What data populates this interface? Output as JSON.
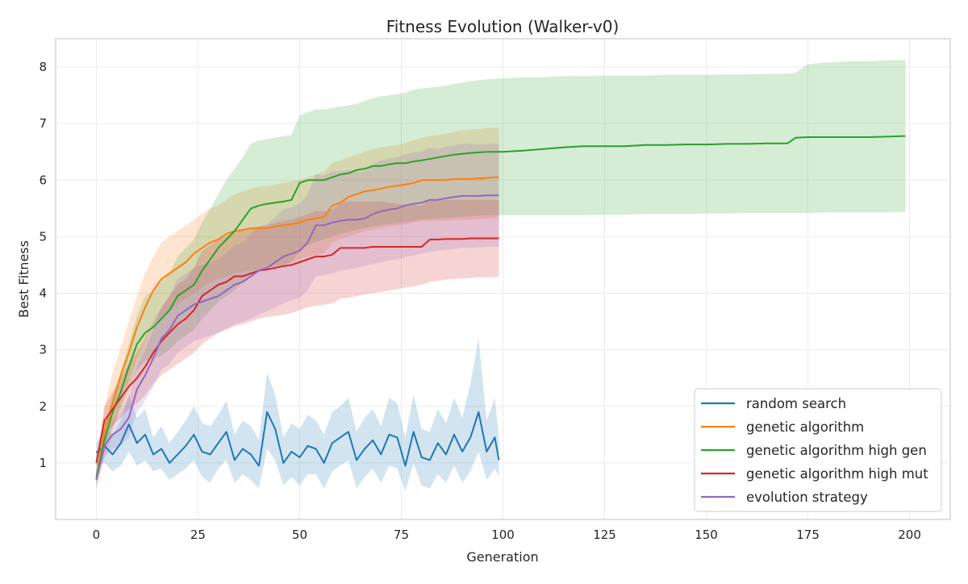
{
  "chart_data": {
    "type": "line",
    "title": "Fitness Evolution (Walker-v0)",
    "xlabel": "Generation",
    "ylabel": "Best Fitness",
    "xlim": [
      -10,
      210
    ],
    "ylim": [
      0.0,
      8.5
    ],
    "xticks": [
      0,
      25,
      50,
      75,
      100,
      125,
      150,
      175,
      200
    ],
    "yticks": [
      1,
      2,
      3,
      4,
      5,
      6,
      7,
      8
    ],
    "grid": true,
    "legend_position": "bottom-right",
    "series": [
      {
        "name": "random search",
        "color": "#1f77b4",
        "x": [
          0,
          2,
          4,
          6,
          8,
          10,
          12,
          14,
          16,
          18,
          20,
          22,
          24,
          26,
          28,
          30,
          32,
          34,
          36,
          38,
          40,
          42,
          44,
          46,
          48,
          50,
          52,
          54,
          56,
          58,
          60,
          62,
          64,
          66,
          68,
          70,
          72,
          74,
          76,
          78,
          80,
          82,
          84,
          86,
          88,
          90,
          92,
          94,
          96,
          98,
          99
        ],
        "y": [
          1.18,
          1.3,
          1.15,
          1.35,
          1.68,
          1.35,
          1.5,
          1.15,
          1.25,
          1.0,
          1.15,
          1.3,
          1.5,
          1.2,
          1.15,
          1.35,
          1.55,
          1.05,
          1.25,
          1.15,
          0.95,
          1.9,
          1.6,
          1.0,
          1.2,
          1.1,
          1.3,
          1.25,
          1.0,
          1.35,
          1.45,
          1.55,
          1.05,
          1.25,
          1.4,
          1.15,
          1.5,
          1.45,
          0.95,
          1.55,
          1.1,
          1.05,
          1.35,
          1.15,
          1.5,
          1.2,
          1.45,
          1.9,
          1.2,
          1.45,
          1.05
        ],
        "lower": [
          0.95,
          1.0,
          0.85,
          0.95,
          1.2,
          0.95,
          1.05,
          0.85,
          0.9,
          0.7,
          0.8,
          0.9,
          1.05,
          0.75,
          0.65,
          0.9,
          1.05,
          0.65,
          0.8,
          0.7,
          0.55,
          1.25,
          1.05,
          0.6,
          0.75,
          0.6,
          0.8,
          0.8,
          0.55,
          0.85,
          0.95,
          1.05,
          0.55,
          0.75,
          0.9,
          0.65,
          0.95,
          0.9,
          0.5,
          1.0,
          0.6,
          0.55,
          0.8,
          0.65,
          0.95,
          0.65,
          0.85,
          1.2,
          0.7,
          0.9,
          0.75
        ],
        "upper": [
          1.35,
          1.6,
          1.5,
          1.75,
          2.2,
          1.8,
          1.95,
          1.45,
          1.65,
          1.35,
          1.55,
          1.75,
          2.0,
          1.7,
          1.65,
          1.85,
          2.1,
          1.5,
          1.75,
          1.65,
          1.4,
          2.6,
          2.2,
          1.45,
          1.7,
          1.6,
          1.85,
          1.75,
          1.5,
          1.9,
          2.0,
          2.15,
          1.55,
          1.8,
          1.95,
          1.65,
          2.15,
          2.05,
          1.45,
          2.2,
          1.6,
          1.55,
          1.95,
          1.7,
          2.15,
          1.8,
          2.4,
          3.2,
          1.75,
          2.15,
          1.45
        ]
      },
      {
        "name": "genetic algorithm",
        "color": "#ff7f0e",
        "x": [
          0,
          2,
          4,
          6,
          8,
          10,
          12,
          14,
          16,
          18,
          20,
          22,
          24,
          26,
          28,
          30,
          32,
          34,
          36,
          38,
          40,
          42,
          44,
          46,
          48,
          50,
          52,
          54,
          56,
          58,
          60,
          62,
          64,
          66,
          68,
          70,
          72,
          74,
          76,
          78,
          80,
          82,
          84,
          86,
          88,
          90,
          92,
          94,
          96,
          98,
          99
        ],
        "y": [
          0.7,
          1.55,
          2.05,
          2.55,
          2.95,
          3.4,
          3.75,
          4.05,
          4.25,
          4.35,
          4.45,
          4.55,
          4.7,
          4.8,
          4.9,
          4.95,
          5.05,
          5.1,
          5.12,
          5.15,
          5.15,
          5.15,
          5.18,
          5.2,
          5.22,
          5.25,
          5.3,
          5.32,
          5.35,
          5.55,
          5.6,
          5.7,
          5.75,
          5.8,
          5.82,
          5.85,
          5.88,
          5.9,
          5.92,
          5.95,
          6.0,
          6.0,
          6.0,
          6.0,
          6.02,
          6.02,
          6.02,
          6.03,
          6.04,
          6.05,
          6.05
        ],
        "lower": [
          0.55,
          1.1,
          1.55,
          2.05,
          2.45,
          2.85,
          3.15,
          3.45,
          3.6,
          3.7,
          3.8,
          3.9,
          4.0,
          4.1,
          4.2,
          4.25,
          4.3,
          4.35,
          4.38,
          4.4,
          4.42,
          4.45,
          4.48,
          4.5,
          4.55,
          4.6,
          4.65,
          4.68,
          4.7,
          4.9,
          4.95,
          5.0,
          5.05,
          5.1,
          5.12,
          5.15,
          5.18,
          5.2,
          5.22,
          5.25,
          5.28,
          5.28,
          5.28,
          5.28,
          5.3,
          5.3,
          5.3,
          5.31,
          5.32,
          5.33,
          5.33
        ],
        "upper": [
          0.85,
          2.0,
          2.6,
          3.05,
          3.5,
          3.95,
          4.35,
          4.65,
          4.9,
          5.0,
          5.1,
          5.2,
          5.3,
          5.4,
          5.5,
          5.55,
          5.65,
          5.75,
          5.8,
          5.85,
          5.88,
          5.9,
          5.92,
          5.95,
          5.98,
          6.0,
          6.05,
          6.1,
          6.15,
          6.3,
          6.35,
          6.4,
          6.45,
          6.5,
          6.55,
          6.58,
          6.6,
          6.62,
          6.65,
          6.7,
          6.75,
          6.78,
          6.8,
          6.82,
          6.85,
          6.88,
          6.9,
          6.9,
          6.92,
          6.92,
          6.92
        ]
      },
      {
        "name": "genetic algorithm high gen",
        "color": "#2ca02c",
        "x": [
          0,
          2,
          4,
          6,
          8,
          10,
          12,
          14,
          16,
          18,
          20,
          22,
          24,
          26,
          28,
          30,
          32,
          34,
          36,
          38,
          40,
          42,
          44,
          46,
          48,
          50,
          52,
          54,
          56,
          58,
          60,
          62,
          64,
          66,
          68,
          70,
          72,
          74,
          76,
          78,
          80,
          84,
          88,
          92,
          96,
          100,
          105,
          110,
          115,
          120,
          125,
          130,
          135,
          140,
          145,
          150,
          155,
          160,
          165,
          170,
          172,
          175,
          180,
          185,
          190,
          195,
          199
        ],
        "y": [
          0.75,
          1.4,
          1.9,
          2.25,
          2.7,
          3.1,
          3.3,
          3.4,
          3.55,
          3.7,
          3.95,
          4.05,
          4.15,
          4.4,
          4.6,
          4.8,
          4.95,
          5.1,
          5.3,
          5.5,
          5.55,
          5.58,
          5.6,
          5.62,
          5.65,
          5.95,
          6.0,
          6.0,
          6.0,
          6.05,
          6.1,
          6.12,
          6.18,
          6.2,
          6.25,
          6.25,
          6.28,
          6.3,
          6.3,
          6.33,
          6.35,
          6.4,
          6.45,
          6.48,
          6.5,
          6.5,
          6.52,
          6.55,
          6.58,
          6.6,
          6.6,
          6.6,
          6.62,
          6.62,
          6.63,
          6.63,
          6.64,
          6.64,
          6.65,
          6.65,
          6.75,
          6.76,
          6.76,
          6.76,
          6.76,
          6.77,
          6.78
        ],
        "lower": [
          0.65,
          1.2,
          1.65,
          1.95,
          2.3,
          2.65,
          2.8,
          2.85,
          2.9,
          3.0,
          3.15,
          3.25,
          3.35,
          3.55,
          3.7,
          3.85,
          3.95,
          4.05,
          4.2,
          4.35,
          4.4,
          4.45,
          4.48,
          4.5,
          4.55,
          4.75,
          4.85,
          4.9,
          4.95,
          5.0,
          5.05,
          5.08,
          5.12,
          5.15,
          5.18,
          5.2,
          5.22,
          5.24,
          5.26,
          5.28,
          5.3,
          5.32,
          5.34,
          5.36,
          5.38,
          5.38,
          5.38,
          5.38,
          5.38,
          5.38,
          5.39,
          5.39,
          5.4,
          5.4,
          5.4,
          5.41,
          5.41,
          5.42,
          5.42,
          5.42,
          5.42,
          5.42,
          5.43,
          5.43,
          5.43,
          5.43,
          5.44
        ],
        "upper": [
          0.9,
          1.65,
          2.2,
          2.6,
          3.1,
          3.6,
          3.95,
          4.05,
          4.2,
          4.35,
          4.65,
          4.8,
          4.95,
          5.25,
          5.5,
          5.75,
          6.0,
          6.2,
          6.4,
          6.65,
          6.7,
          6.72,
          6.75,
          6.78,
          6.8,
          7.15,
          7.2,
          7.25,
          7.25,
          7.28,
          7.3,
          7.32,
          7.35,
          7.4,
          7.45,
          7.48,
          7.5,
          7.52,
          7.55,
          7.6,
          7.62,
          7.65,
          7.7,
          7.75,
          7.78,
          7.8,
          7.82,
          7.82,
          7.84,
          7.84,
          7.85,
          7.85,
          7.85,
          7.86,
          7.86,
          7.86,
          7.87,
          7.87,
          7.88,
          7.88,
          7.9,
          8.05,
          8.08,
          8.1,
          8.1,
          8.12,
          8.12
        ]
      },
      {
        "name": "genetic algorithm high mut",
        "color": "#d62728",
        "x": [
          0,
          2,
          4,
          6,
          8,
          10,
          12,
          14,
          16,
          18,
          20,
          22,
          24,
          26,
          28,
          30,
          32,
          34,
          36,
          38,
          40,
          42,
          44,
          46,
          48,
          50,
          52,
          54,
          56,
          58,
          60,
          62,
          64,
          66,
          68,
          70,
          72,
          74,
          76,
          78,
          80,
          82,
          84,
          86,
          88,
          90,
          92,
          94,
          96,
          98,
          99
        ],
        "y": [
          1.0,
          1.75,
          1.95,
          2.15,
          2.35,
          2.5,
          2.7,
          2.95,
          3.15,
          3.3,
          3.45,
          3.55,
          3.7,
          3.95,
          4.05,
          4.15,
          4.2,
          4.3,
          4.3,
          4.35,
          4.4,
          4.42,
          4.45,
          4.48,
          4.5,
          4.55,
          4.6,
          4.65,
          4.65,
          4.68,
          4.8,
          4.8,
          4.8,
          4.8,
          4.82,
          4.82,
          4.82,
          4.82,
          4.82,
          4.82,
          4.82,
          4.95,
          4.95,
          4.96,
          4.96,
          4.96,
          4.97,
          4.97,
          4.97,
          4.97,
          4.97
        ],
        "lower": [
          0.9,
          1.5,
          1.65,
          1.8,
          1.95,
          2.05,
          2.2,
          2.4,
          2.55,
          2.65,
          2.75,
          2.85,
          2.95,
          3.1,
          3.2,
          3.3,
          3.35,
          3.42,
          3.45,
          3.5,
          3.55,
          3.58,
          3.6,
          3.62,
          3.65,
          3.7,
          3.75,
          3.78,
          3.8,
          3.82,
          3.9,
          3.92,
          3.95,
          3.98,
          4.0,
          4.02,
          4.05,
          4.07,
          4.1,
          4.12,
          4.15,
          4.2,
          4.22,
          4.24,
          4.25,
          4.26,
          4.27,
          4.28,
          4.28,
          4.29,
          4.29
        ],
        "upper": [
          1.1,
          2.0,
          2.25,
          2.5,
          2.75,
          2.95,
          3.2,
          3.5,
          3.75,
          3.95,
          4.15,
          4.25,
          4.45,
          4.75,
          4.85,
          4.95,
          5.0,
          5.1,
          5.12,
          5.15,
          5.18,
          5.2,
          5.25,
          5.28,
          5.3,
          5.35,
          5.4,
          5.45,
          5.45,
          5.48,
          5.6,
          5.62,
          5.62,
          5.62,
          5.62,
          5.62,
          5.6,
          5.58,
          5.57,
          5.56,
          5.55,
          5.65,
          5.65,
          5.65,
          5.65,
          5.65,
          5.65,
          5.65,
          5.65,
          5.65,
          5.65
        ]
      },
      {
        "name": "evolution strategy",
        "color": "#9467bd",
        "x": [
          0,
          2,
          4,
          6,
          8,
          10,
          12,
          14,
          16,
          18,
          20,
          22,
          24,
          26,
          28,
          30,
          32,
          34,
          36,
          38,
          40,
          42,
          44,
          46,
          48,
          50,
          52,
          54,
          56,
          58,
          60,
          62,
          64,
          66,
          68,
          70,
          72,
          74,
          76,
          78,
          80,
          82,
          84,
          86,
          88,
          90,
          92,
          94,
          96,
          98,
          99
        ],
        "y": [
          0.7,
          1.3,
          1.5,
          1.6,
          1.8,
          2.3,
          2.55,
          2.85,
          3.2,
          3.35,
          3.6,
          3.7,
          3.8,
          3.85,
          3.9,
          3.95,
          4.05,
          4.15,
          4.2,
          4.3,
          4.4,
          4.45,
          4.55,
          4.65,
          4.7,
          4.75,
          4.9,
          5.2,
          5.2,
          5.25,
          5.28,
          5.3,
          5.3,
          5.32,
          5.4,
          5.45,
          5.48,
          5.5,
          5.55,
          5.58,
          5.6,
          5.65,
          5.65,
          5.68,
          5.7,
          5.72,
          5.72,
          5.72,
          5.73,
          5.73,
          5.73
        ],
        "lower": [
          0.55,
          1.1,
          1.25,
          1.3,
          1.45,
          1.9,
          2.1,
          2.35,
          2.65,
          2.75,
          2.95,
          3.05,
          3.15,
          3.2,
          3.25,
          3.3,
          3.38,
          3.45,
          3.5,
          3.55,
          3.62,
          3.68,
          3.75,
          3.82,
          3.88,
          3.92,
          4.05,
          4.3,
          4.32,
          4.35,
          4.4,
          4.42,
          4.45,
          4.48,
          4.52,
          4.55,
          4.58,
          4.6,
          4.64,
          4.67,
          4.7,
          4.73,
          4.75,
          4.77,
          4.78,
          4.8,
          4.8,
          4.81,
          4.82,
          4.82,
          4.82
        ],
        "upper": [
          0.85,
          1.5,
          1.75,
          1.9,
          2.15,
          2.7,
          3.0,
          3.35,
          3.75,
          3.95,
          4.25,
          4.35,
          4.45,
          4.5,
          4.55,
          4.6,
          4.72,
          4.85,
          4.9,
          5.05,
          5.18,
          5.22,
          5.35,
          5.48,
          5.52,
          5.58,
          5.75,
          6.1,
          6.08,
          6.15,
          6.16,
          6.18,
          6.15,
          6.16,
          6.28,
          6.35,
          6.38,
          6.4,
          6.46,
          6.49,
          6.5,
          6.57,
          6.55,
          6.59,
          6.62,
          6.64,
          6.64,
          6.63,
          6.64,
          6.64,
          6.64
        ]
      }
    ]
  }
}
